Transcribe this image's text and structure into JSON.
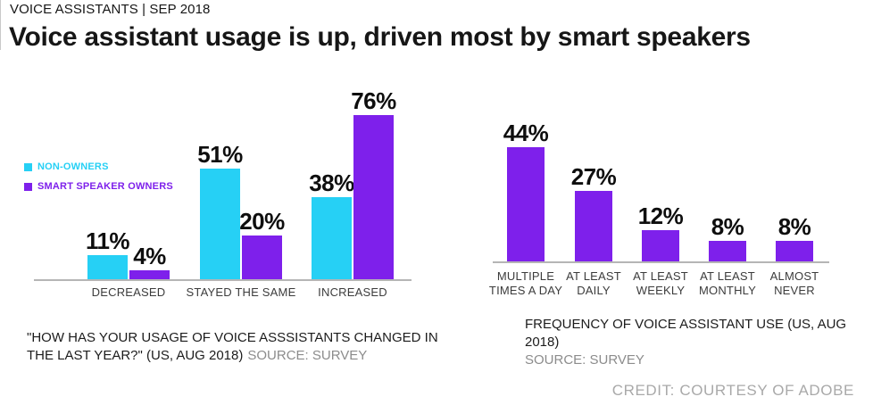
{
  "page": {
    "kicker": "VOICE ASSISTANTS | SEP 2018",
    "title": "Voice assistant usage is up, driven most by smart speakers",
    "credit": "CREDIT: COURTESY OF ADOBE"
  },
  "colors": {
    "cyan": "#26D0F5",
    "purple": "#7E20EB",
    "axis": "#B5B5B5",
    "value_label": "#0E0E0E",
    "category_label": "#3C3C3C",
    "caption_text": "#1C1C1C",
    "caption_source_gray": "#8C8C8C",
    "credit_gray": "#A9A9A9"
  },
  "chart_data": [
    {
      "type": "bar",
      "title": "",
      "categories": [
        "DECREASED",
        "STAYED THE SAME",
        "INCREASED"
      ],
      "series": [
        {
          "name": "NON-OWNERS",
          "color": "#26D0F5",
          "values": [
            11,
            51,
            38
          ]
        },
        {
          "name": "SMART SPEAKER OWNERS",
          "color": "#7E20EB",
          "values": [
            4,
            20,
            76
          ]
        }
      ],
      "value_suffix": "%",
      "ylim": [
        0,
        80
      ],
      "grid": false,
      "legend_position": "left-of-plot",
      "caption": "\"HOW HAS YOUR USAGE OF VOICE ASSSISTANTS CHANGED IN THE LAST YEAR?\" (US, AUG 2018)",
      "source": "SOURCE: SURVEY"
    },
    {
      "type": "bar",
      "title": "",
      "categories": [
        "MULTIPLE\nTIMES A DAY",
        "AT LEAST\nDAILY",
        "AT LEAST\nWEEKLY",
        "AT LEAST\nMONTHLY",
        "ALMOST\nNEVER"
      ],
      "values": [
        44,
        27,
        12,
        8,
        8
      ],
      "series_color": "#7E20EB",
      "value_suffix": "%",
      "ylim": [
        0,
        50
      ],
      "grid": false,
      "legend_position": "none",
      "caption": "FREQUENCY OF VOICE ASSISTANT USE (US, AUG 2018)",
      "source": "SOURCE: SURVEY"
    }
  ]
}
